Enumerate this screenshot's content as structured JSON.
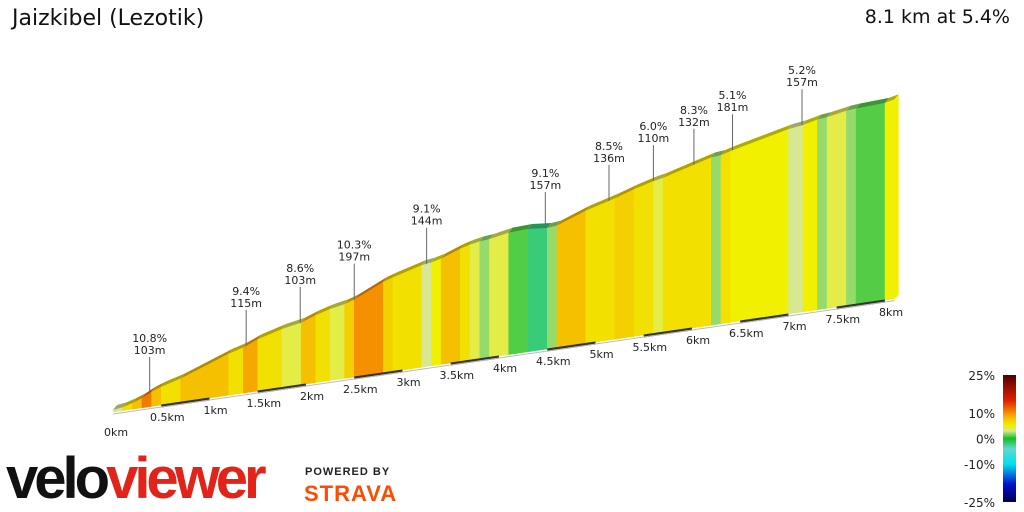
{
  "header": {
    "title": "Jaizkibel (Lezotik)",
    "summary": "8.1 km at 5.4%"
  },
  "chart_data": {
    "type": "area",
    "title": "Jaizkibel (Lezotik)",
    "distance_km": 8.1,
    "avg_gradient_pct": 5.4,
    "segments": [
      [
        0,
        0.1,
        3
      ],
      [
        0.1,
        0.2,
        6
      ],
      [
        0.2,
        0.3,
        8
      ],
      [
        0.3,
        0.4,
        11
      ],
      [
        0.4,
        0.5,
        8
      ],
      [
        0.5,
        0.7,
        6
      ],
      [
        0.7,
        1.2,
        8
      ],
      [
        1.2,
        1.35,
        6
      ],
      [
        1.35,
        1.5,
        9
      ],
      [
        1.5,
        1.75,
        6
      ],
      [
        1.75,
        1.95,
        4
      ],
      [
        1.95,
        2.1,
        8
      ],
      [
        2.1,
        2.25,
        6
      ],
      [
        2.25,
        2.4,
        4
      ],
      [
        2.4,
        2.5,
        7
      ],
      [
        2.5,
        2.8,
        10
      ],
      [
        2.8,
        2.9,
        7
      ],
      [
        2.9,
        3.2,
        6
      ],
      [
        3.2,
        3.3,
        3
      ],
      [
        3.3,
        3.4,
        5
      ],
      [
        3.4,
        3.6,
        8
      ],
      [
        3.6,
        3.7,
        6
      ],
      [
        3.7,
        3.8,
        4
      ],
      [
        3.8,
        3.9,
        2
      ],
      [
        3.9,
        4.1,
        4
      ],
      [
        4.1,
        4.3,
        1
      ],
      [
        4.3,
        4.5,
        -2
      ],
      [
        4.5,
        4.6,
        2
      ],
      [
        4.6,
        4.9,
        8
      ],
      [
        4.9,
        5.2,
        6
      ],
      [
        5.2,
        5.4,
        7
      ],
      [
        5.4,
        5.6,
        6
      ],
      [
        5.6,
        5.7,
        4
      ],
      [
        5.7,
        5.9,
        6
      ],
      [
        5.9,
        6.2,
        6
      ],
      [
        6.2,
        6.3,
        2
      ],
      [
        6.3,
        6.4,
        6
      ],
      [
        6.4,
        7.0,
        5
      ],
      [
        7.0,
        7.15,
        3
      ],
      [
        7.15,
        7.3,
        5
      ],
      [
        7.3,
        7.4,
        2
      ],
      [
        7.4,
        7.6,
        4
      ],
      [
        7.6,
        7.7,
        2
      ],
      [
        7.7,
        8.0,
        1
      ],
      [
        8.0,
        8.1,
        5
      ]
    ],
    "x_ticks": [
      "0km",
      "0.5km",
      "1km",
      "1.5km",
      "2km",
      "2.5km",
      "3km",
      "3.5km",
      "4km",
      "4.5km",
      "5km",
      "5.5km",
      "6km",
      "6.5km",
      "7km",
      "7.5km",
      "8km"
    ],
    "annotations": [
      {
        "km": 0.38,
        "gradient": "10.8%",
        "length": "103m"
      },
      {
        "km": 1.38,
        "gradient": "9.4%",
        "length": "115m"
      },
      {
        "km": 1.94,
        "gradient": "8.6%",
        "length": "103m"
      },
      {
        "km": 2.5,
        "gradient": "10.3%",
        "length": "197m"
      },
      {
        "km": 3.25,
        "gradient": "9.1%",
        "length": "144m"
      },
      {
        "km": 4.48,
        "gradient": "9.1%",
        "length": "157m"
      },
      {
        "km": 5.14,
        "gradient": "8.5%",
        "length": "136m"
      },
      {
        "km": 5.6,
        "gradient": "6.0%",
        "length": "110m"
      },
      {
        "km": 6.02,
        "gradient": "8.3%",
        "length": "132m"
      },
      {
        "km": 6.42,
        "gradient": "5.1%",
        "length": "181m"
      },
      {
        "km": 7.14,
        "gradient": "5.2%",
        "length": "157m"
      }
    ],
    "legend": {
      "labels": [
        "25%",
        "10%",
        "0%",
        "-10%",
        "-25%"
      ],
      "stops": [
        [
          -25,
          "#000050"
        ],
        [
          -18,
          "#0010d0"
        ],
        [
          -10,
          "#00e0f0"
        ],
        [
          -4,
          "#60d8d0"
        ],
        [
          0,
          "#10c020"
        ],
        [
          3,
          "#d8e890"
        ],
        [
          5,
          "#f0f000"
        ],
        [
          8,
          "#f5c000"
        ],
        [
          10,
          "#f59000"
        ],
        [
          15,
          "#e02000"
        ],
        [
          25,
          "#500000"
        ]
      ]
    }
  },
  "branding": {
    "velo": "velo",
    "viewer": "viewer",
    "powered_by": "POWERED BY",
    "strava": "STRAVA"
  }
}
